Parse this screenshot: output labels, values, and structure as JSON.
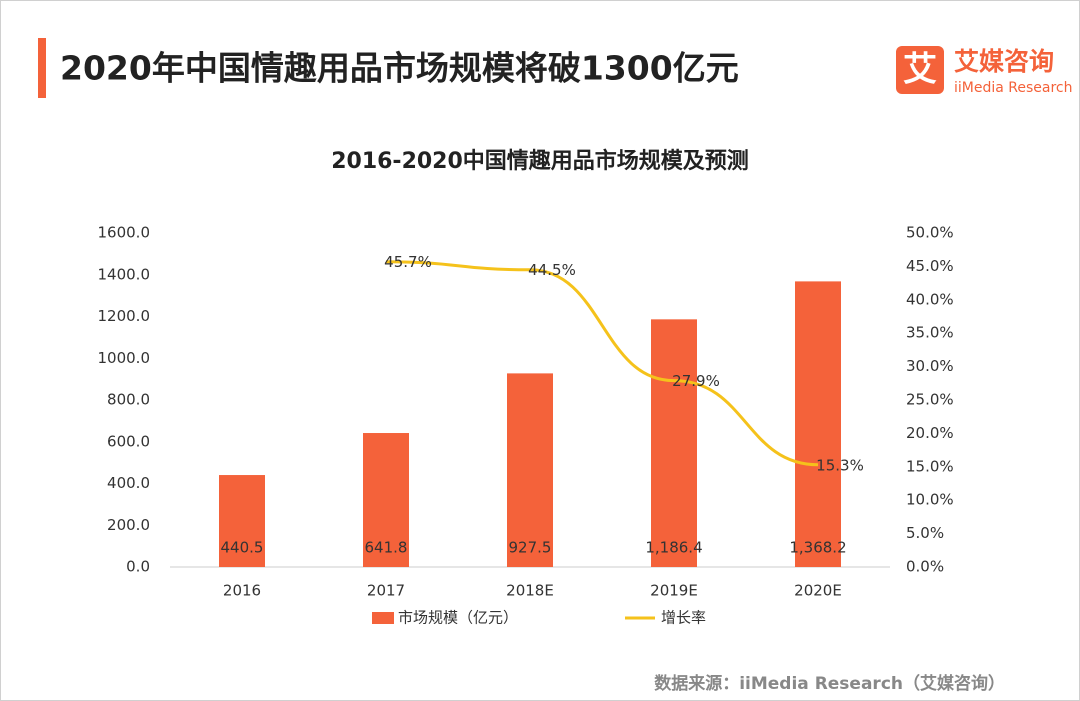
{
  "header": {
    "title": "2020年中国情趣用品市场规模将破1300亿元"
  },
  "logo": {
    "icon": "艾",
    "name": "艾媒咨询",
    "english": "iiMedia Research"
  },
  "chart_data": {
    "type": "combo",
    "title": "2016-2020中国情趣用品市场规模及预测",
    "categories": [
      "2016",
      "2017",
      "2018E",
      "2019E",
      "2020E"
    ],
    "series": [
      {
        "name": "市场规模（亿元）",
        "type": "bar",
        "color": "#f4623a",
        "values": [
          440.5,
          641.8,
          927.5,
          1186.4,
          1368.2
        ],
        "value_labels": [
          "440.5",
          "641.8",
          "927.5",
          "1,186.4",
          "1,368.2"
        ]
      },
      {
        "name": "增长率",
        "type": "line",
        "axis": "y2",
        "color": "#f5c21b",
        "values": [
          null,
          45.7,
          44.5,
          27.9,
          15.3
        ],
        "value_labels": [
          null,
          "45.7%",
          "44.5%",
          "27.9%",
          "15.3%"
        ]
      }
    ],
    "ylim": [
      0,
      1600
    ],
    "yticks": [
      {
        "value": 0,
        "label": "0.0"
      },
      {
        "value": 200,
        "label": "200.0"
      },
      {
        "value": 400,
        "label": "400.0"
      },
      {
        "value": 600,
        "label": "600.0"
      },
      {
        "value": 800,
        "label": "800.0"
      },
      {
        "value": 1000,
        "label": "1000.0"
      },
      {
        "value": 1200,
        "label": "1200.0"
      },
      {
        "value": 1400,
        "label": "1400.0"
      },
      {
        "value": 1600,
        "label": "1600.0"
      }
    ],
    "y2lim": [
      0,
      50
    ],
    "y2ticks": [
      {
        "value": 0,
        "label": "0.0%"
      },
      {
        "value": 5,
        "label": "5.0%"
      },
      {
        "value": 10,
        "label": "10.0%"
      },
      {
        "value": 15,
        "label": "15.0%"
      },
      {
        "value": 20,
        "label": "20.0%"
      },
      {
        "value": 25,
        "label": "25.0%"
      },
      {
        "value": 30,
        "label": "30.0%"
      },
      {
        "value": 35,
        "label": "35.0%"
      },
      {
        "value": 40,
        "label": "40.0%"
      },
      {
        "value": 45,
        "label": "45.0%"
      },
      {
        "value": 50,
        "label": "50.0%"
      }
    ],
    "legend": "bottom"
  },
  "footer": {
    "source": "数据来源：iiMedia Research（艾媒咨询）"
  }
}
